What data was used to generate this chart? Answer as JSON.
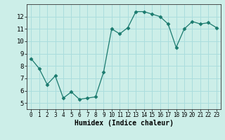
{
  "x": [
    0,
    1,
    2,
    3,
    4,
    5,
    6,
    7,
    8,
    9,
    10,
    11,
    12,
    13,
    14,
    15,
    16,
    17,
    18,
    19,
    20,
    21,
    22,
    23
  ],
  "y": [
    8.6,
    7.8,
    6.5,
    7.2,
    5.4,
    5.9,
    5.3,
    5.4,
    5.5,
    7.5,
    11.0,
    10.6,
    11.1,
    12.4,
    12.4,
    12.2,
    12.0,
    11.4,
    9.5,
    11.0,
    11.6,
    11.4,
    11.5,
    11.1
  ],
  "line_color": "#1a7a6e",
  "marker": "D",
  "marker_size": 2.5,
  "bg_color": "#cceee8",
  "grid_color": "#aadddd",
  "xlabel": "Humidex (Indice chaleur)",
  "ylim": [
    4.5,
    13.0
  ],
  "xlim": [
    -0.5,
    23.5
  ],
  "yticks": [
    5,
    6,
    7,
    8,
    9,
    10,
    11,
    12
  ],
  "xticks": [
    0,
    1,
    2,
    3,
    4,
    5,
    6,
    7,
    8,
    9,
    10,
    11,
    12,
    13,
    14,
    15,
    16,
    17,
    18,
    19,
    20,
    21,
    22,
    23
  ],
  "label_fontsize": 7,
  "tick_fontsize": 6.5
}
